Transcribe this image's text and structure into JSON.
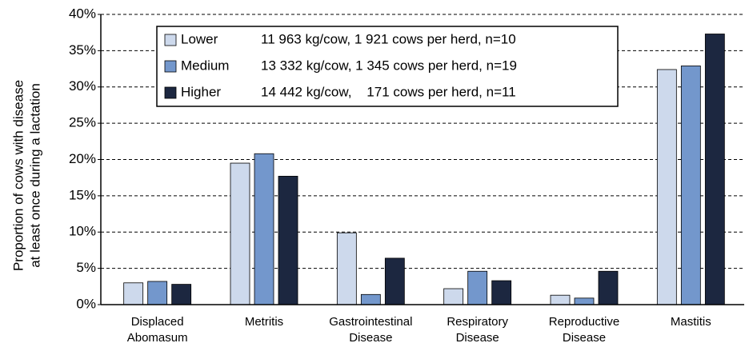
{
  "chart_data": {
    "type": "bar",
    "y_label": [
      "Proportion of cows with disease",
      "at least    once during a lactation"
    ],
    "categories": [
      "Displaced Abomasum",
      "Metritis",
      "Gastrointestinal Disease",
      "Respiratory Disease",
      "Reproductive Disease",
      "Mastitis"
    ],
    "series": [
      {
        "name": "Lower",
        "description": "11 963 kg/cow, 1 921 cows per herd, n=10",
        "color": "#cdd9ec",
        "values": [
          3.0,
          19.5,
          9.9,
          2.2,
          1.3,
          32.4
        ]
      },
      {
        "name": "Medium",
        "description": "13 332 kg/cow, 1 345 cows per herd, n=19",
        "color": "#7397cc",
        "values": [
          3.2,
          20.8,
          1.4,
          4.6,
          0.9,
          32.9
        ]
      },
      {
        "name": "Higher",
        "description": "14 442 kg/cow,    171 cows per herd, n=11",
        "color": "#1c2740",
        "values": [
          2.8,
          17.7,
          6.4,
          3.3,
          4.6,
          37.3
        ]
      }
    ],
    "ylim": [
      0,
      40
    ],
    "yticks": [
      {
        "value": 0,
        "label": "0%"
      },
      {
        "value": 5,
        "label": "5%"
      },
      {
        "value": 10,
        "label": "10%"
      },
      {
        "value": 15,
        "label": "15%"
      },
      {
        "value": 20,
        "label": "20%"
      },
      {
        "value": 25,
        "label": "25%"
      },
      {
        "value": 30,
        "label": "30%"
      },
      {
        "value": 35,
        "label": "35%"
      },
      {
        "value": 40,
        "label": "40%"
      }
    ],
    "grid": true,
    "legend": "top-left"
  }
}
